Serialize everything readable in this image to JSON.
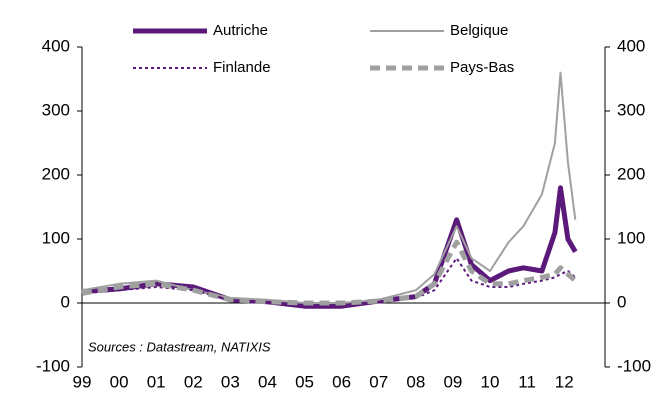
{
  "chart_data": {
    "type": "line",
    "annotation": "Sources : Datastream, NATIXIS",
    "x": [
      1999,
      2000,
      2001,
      2002,
      2003,
      2004,
      2005,
      2006,
      2007,
      2008,
      2008.5,
      2009.1,
      2009.5,
      2010,
      2010.5,
      2010.9,
      2011.4,
      2011.75,
      2011.9,
      2012.1,
      2012.3
    ],
    "series": [
      {
        "name": "Autriche",
        "color": "#5b1a7a",
        "style": "solid",
        "width": 5,
        "values": [
          18,
          22,
          30,
          25,
          5,
          2,
          -5,
          -5,
          3,
          10,
          30,
          130,
          60,
          35,
          50,
          55,
          50,
          110,
          180,
          100,
          80
        ]
      },
      {
        "name": "Belgique",
        "color": "#a0a0a0",
        "style": "solid",
        "width": 2,
        "values": [
          20,
          30,
          35,
          20,
          8,
          5,
          0,
          0,
          5,
          20,
          45,
          120,
          70,
          50,
          95,
          120,
          170,
          250,
          360,
          220,
          130
        ]
      },
      {
        "name": "Finlande",
        "color": "#5b1a7a",
        "style": "dotted",
        "width": 2,
        "values": [
          15,
          20,
          25,
          20,
          5,
          0,
          -5,
          -3,
          2,
          8,
          20,
          70,
          35,
          25,
          25,
          30,
          35,
          40,
          45,
          50,
          40
        ]
      },
      {
        "name": "Pays-Bas",
        "color": "#a0a0a0",
        "style": "dashed",
        "width": 5,
        "values": [
          15,
          25,
          30,
          20,
          5,
          2,
          0,
          0,
          3,
          10,
          30,
          95,
          50,
          30,
          30,
          35,
          40,
          45,
          55,
          45,
          35
        ]
      }
    ],
    "xlim": [
      1999,
      2013.1
    ],
    "xticks": [
      {
        "value": 1999,
        "label": "99"
      },
      {
        "value": 2000,
        "label": "00"
      },
      {
        "value": 2001,
        "label": "01"
      },
      {
        "value": 2002,
        "label": "02"
      },
      {
        "value": 2003,
        "label": "03"
      },
      {
        "value": 2004,
        "label": "04"
      },
      {
        "value": 2005,
        "label": "05"
      },
      {
        "value": 2006,
        "label": "06"
      },
      {
        "value": 2007,
        "label": "07"
      },
      {
        "value": 2008,
        "label": "08"
      },
      {
        "value": 2009,
        "label": "09"
      },
      {
        "value": 2010,
        "label": "10"
      },
      {
        "value": 2011,
        "label": "11"
      },
      {
        "value": 2012,
        "label": "12"
      }
    ],
    "ylim": [
      -100,
      400
    ],
    "yticks": [
      -100,
      0,
      100,
      200,
      300,
      400
    ],
    "y2lim": [
      -100,
      400
    ],
    "y2ticks": [
      -100,
      0,
      100,
      200,
      300,
      400
    ],
    "grid": false
  }
}
